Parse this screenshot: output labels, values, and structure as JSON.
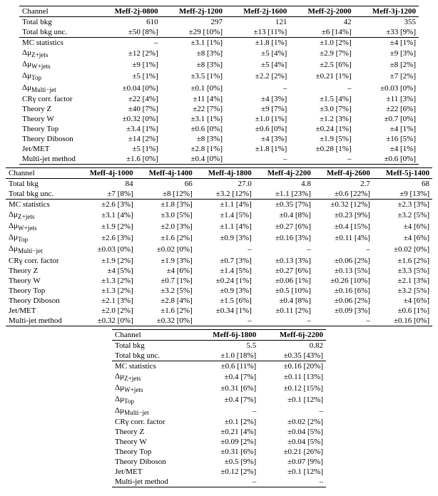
{
  "table1": {
    "header_label": "Channel",
    "cols": [
      "Meff-2j-0800",
      "Meff-2j-1200",
      "Meff-2j-1600",
      "Meff-2j-2000",
      "Meff-3j-1200"
    ],
    "sectionA": [
      {
        "label": "Total bkg",
        "vals": [
          "610",
          "297",
          "121",
          "42",
          "355"
        ]
      },
      {
        "label": "Total bkg unc.",
        "vals": [
          "±50 [8%]",
          "±29 [10%]",
          "±13 [11%]",
          "±6 [14%]",
          "±33 [9%]"
        ]
      }
    ],
    "sectionB": [
      {
        "label": "MC statistics",
        "vals": [
          "–",
          "±3.1 [1%]",
          "±1.8 [1%]",
          "±1.0 [2%]",
          "±4 [1%]"
        ]
      },
      {
        "label": "Δμ<sub>Z+jets</sub>",
        "vals": [
          "±12 [2%]",
          "±8 [3%]",
          "±5 [4%]",
          "±2.9 [7%]",
          "±9 [3%]"
        ]
      },
      {
        "label": "Δμ<sub>W+jets</sub>",
        "vals": [
          "±9 [1%]",
          "±8 [3%]",
          "±5 [4%]",
          "±2.5 [6%]",
          "±8 [2%]"
        ]
      },
      {
        "label": "Δμ<sub>Top</sub>",
        "vals": [
          "±5 [1%]",
          "±3.5 [1%]",
          "±2.2 [2%]",
          "±0.21 [1%]",
          "±7 [2%]"
        ]
      },
      {
        "label": "Δμ<sub>Multi−jet</sub>",
        "vals": [
          "±0.04 [0%]",
          "±0.1 [0%]",
          "–",
          "–",
          "±0.03 [0%]"
        ]
      },
      {
        "label": "CRγ corr. factor",
        "vals": [
          "±22 [4%]",
          "±11 [4%]",
          "±4 [3%]",
          "±1.5 [4%]",
          "±11 [3%]"
        ]
      },
      {
        "label": "Theory Z",
        "vals": [
          "±40 [7%]",
          "±22 [7%]",
          "±9 [7%]",
          "±3.0 [7%]",
          "±22 [6%]"
        ]
      },
      {
        "label": "Theory W",
        "vals": [
          "±0.32 [0%]",
          "±3.1 [1%]",
          "±1.0 [1%]",
          "±1.2 [3%]",
          "±0.7 [0%]"
        ]
      },
      {
        "label": "Theory Top",
        "vals": [
          "±3.4 [1%]",
          "±0.6 [0%]",
          "±0.6 [0%]",
          "±0.24 [1%]",
          "±4 [1%]"
        ]
      },
      {
        "label": "Theory Diboson",
        "vals": [
          "±14 [2%]",
          "±8 [3%]",
          "±4 [3%]",
          "±1.9 [5%]",
          "±16 [5%]"
        ]
      },
      {
        "label": "Jet/MET",
        "vals": [
          "±5 [1%]",
          "±2.8 [1%]",
          "±1.8 [1%]",
          "±0.28 [1%]",
          "±4 [1%]"
        ]
      },
      {
        "label": "Multi-jet method",
        "vals": [
          "±1.6 [0%]",
          "±0.4 [0%]",
          "–",
          "–",
          "±0.6 [0%]"
        ]
      }
    ]
  },
  "table2": {
    "header_label": "Channel",
    "cols": [
      "Meff-4j-1000",
      "Meff-4j-1400",
      "Meff-4j-1800",
      "Meff-4j-2200",
      "Meff-4j-2600",
      "Meff-5j-1400"
    ],
    "sectionA": [
      {
        "label": "Total bkg",
        "vals": [
          "84",
          "66",
          "27.0",
          "4.8",
          "2.7",
          "68"
        ]
      },
      {
        "label": "Total bkg unc.",
        "vals": [
          "±7 [8%]",
          "±8 [12%]",
          "±3.2 [12%]",
          "±1.1 [23%]",
          "±0.6 [22%]",
          "±9 [13%]"
        ]
      }
    ],
    "sectionB": [
      {
        "label": "MC statistics",
        "vals": [
          "±2.6 [3%]",
          "±1.8 [3%]",
          "±1.1 [4%]",
          "±0.35 [7%]",
          "±0.32 [12%]",
          "±2.3 [3%]"
        ]
      },
      {
        "label": "Δμ<sub>Z+jets</sub>",
        "vals": [
          "±3.1 [4%]",
          "±3.0 [5%]",
          "±1.4 [5%]",
          "±0.4 [8%]",
          "±0.23 [9%]",
          "±3.2 [5%]"
        ]
      },
      {
        "label": "Δμ<sub>W+jets</sub>",
        "vals": [
          "±1.9 [2%]",
          "±2.0 [3%]",
          "±1.1 [4%]",
          "±0.27 [6%]",
          "±0.4 [15%]",
          "±4 [6%]"
        ]
      },
      {
        "label": "Δμ<sub>Top</sub>",
        "vals": [
          "±2.6 [3%]",
          "±1.6 [2%]",
          "±0.9 [3%]",
          "±0.16 [3%]",
          "±0.11 [4%]",
          "±4 [6%]"
        ]
      },
      {
        "label": "Δμ<sub>Multi−jet</sub>",
        "vals": [
          "±0.03 [0%]",
          "±0.02 [0%]",
          "–",
          "–",
          "–",
          "±0.02 [0%]"
        ]
      },
      {
        "label": "CRγ corr. factor",
        "vals": [
          "±1.9 [2%]",
          "±1.9 [3%]",
          "±0.7 [3%]",
          "±0.13 [3%]",
          "±0.06 [2%]",
          "±1.6 [2%]"
        ]
      },
      {
        "label": "Theory Z",
        "vals": [
          "±4 [5%]",
          "±4 [6%]",
          "±1.4 [5%]",
          "±0.27 [6%]",
          "±0.13 [5%]",
          "±3.3 [5%]"
        ]
      },
      {
        "label": "Theory W",
        "vals": [
          "±1.3 [2%]",
          "±0.7 [1%]",
          "±0.24 [1%]",
          "±0.06 [1%]",
          "±0.26 [10%]",
          "±2.1 [3%]"
        ]
      },
      {
        "label": "Theory Top",
        "vals": [
          "±1.3 [2%]",
          "±3.2 [5%]",
          "±0.9 [3%]",
          "±0.5 [10%]",
          "±0.16 [6%]",
          "±3.2 [5%]"
        ]
      },
      {
        "label": "Theory Diboson",
        "vals": [
          "±2.1 [3%]",
          "±2.8 [4%]",
          "±1.5 [6%]",
          "±0.4 [8%]",
          "±0.06 [2%]",
          "±4 [6%]"
        ]
      },
      {
        "label": "Jet/MET",
        "vals": [
          "±2.0 [2%]",
          "±1.6 [2%]",
          "±0.34 [1%]",
          "±0.11 [2%]",
          "±0.09 [3%]",
          "±0.6 [1%]"
        ]
      },
      {
        "label": "Multi-jet method",
        "vals": [
          "±0.32 [0%]",
          "±0.32 [0%]",
          "–",
          "–",
          "–",
          "±0.16 [0%]"
        ]
      }
    ]
  },
  "table3": {
    "header_label": "Channel",
    "cols": [
      "Meff-6j-1800",
      "Meff-6j-2200"
    ],
    "sectionA": [
      {
        "label": "Total bkg",
        "vals": [
          "5.5",
          "0.82"
        ]
      },
      {
        "label": "Total bkg unc.",
        "vals": [
          "±1.0 [18%]",
          "±0.35 [43%]"
        ]
      }
    ],
    "sectionB": [
      {
        "label": "MC statistics",
        "vals": [
          "±0.6 [11%]",
          "±0.16 [20%]"
        ]
      },
      {
        "label": "Δμ<sub>Z+jets</sub>",
        "vals": [
          "±0.4 [7%]",
          "±0.11 [13%]"
        ]
      },
      {
        "label": "Δμ<sub>W+jets</sub>",
        "vals": [
          "±0.31 [6%]",
          "±0.12 [15%]"
        ]
      },
      {
        "label": "Δμ<sub>Top</sub>",
        "vals": [
          "±0.4 [7%]",
          "±0.1 [12%]"
        ]
      },
      {
        "label": "Δμ<sub>Multi−jet</sub>",
        "vals": [
          "–",
          "–"
        ]
      },
      {
        "label": "CRγ corr. factor",
        "vals": [
          "±0.1 [2%]",
          "±0.02 [2%]"
        ]
      },
      {
        "label": "Theory Z",
        "vals": [
          "±0.21 [4%]",
          "±0.04 [5%]"
        ]
      },
      {
        "label": "Theory W",
        "vals": [
          "±0.09 [2%]",
          "±0.04 [5%]"
        ]
      },
      {
        "label": "Theory Top",
        "vals": [
          "±0.31 [6%]",
          "±0.21 [26%]"
        ]
      },
      {
        "label": "Theory Diboson",
        "vals": [
          "±0.5 [9%]",
          "±0.07 [9%]"
        ]
      },
      {
        "label": "Jet/MET",
        "vals": [
          "±0.12 [2%]",
          "±0.1 [12%]"
        ]
      },
      {
        "label": "Multi-jet method",
        "vals": [
          "–",
          "–"
        ]
      }
    ]
  },
  "style": {
    "font_family": "Times New Roman",
    "font_size_pt": 9,
    "text_color": "#000000",
    "background_color": "#ffffff",
    "border_color": "#000000"
  }
}
